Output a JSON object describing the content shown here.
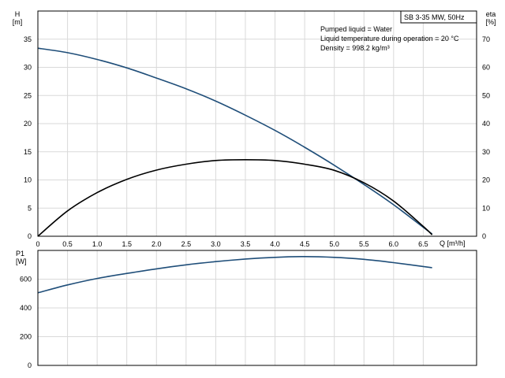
{
  "badge": "SB 3-35 MW, 50Hz",
  "info_lines": [
    "Pumped liquid = Water",
    "Liquid temperature during operation = 20 °C",
    "Density = 998.2 kg/m³"
  ],
  "chart_data": [
    {
      "type": "line",
      "panel": "top",
      "y_left_label": "H",
      "y_left_unit": "[m]",
      "y_right_label": "eta",
      "y_right_unit": "[%]",
      "x_label": "Q [m³/h]",
      "xlim": [
        0,
        7.4
      ],
      "ylim_left": [
        0,
        40
      ],
      "ylim_right": [
        0,
        80
      ],
      "x_ticks": [
        0,
        0.5,
        1.0,
        1.5,
        2.0,
        2.5,
        3.0,
        3.5,
        4.0,
        4.5,
        5.0,
        5.5,
        6.0,
        6.5
      ],
      "x_tick_labels": [
        "0",
        "0.5",
        "1.0",
        "1.5",
        "2.0",
        "2.5",
        "3.0",
        "3.5",
        "4.0",
        "4.5",
        "5.0",
        "5.5",
        "6.0",
        "6.5"
      ],
      "y_left_ticks": [
        0,
        5,
        10,
        15,
        20,
        25,
        30,
        35
      ],
      "y_right_ticks": [
        0,
        10,
        20,
        30,
        40,
        50,
        60,
        70
      ],
      "grid": true,
      "series": [
        {
          "axis": "left",
          "color": "#1f4e79",
          "x": [
            0,
            0.5,
            1.0,
            1.5,
            2.0,
            2.5,
            3.0,
            3.5,
            4.0,
            4.5,
            5.0,
            5.5,
            6.0,
            6.5,
            6.65
          ],
          "values": [
            33.4,
            32.6,
            31.4,
            29.9,
            28.1,
            26.2,
            24.0,
            21.5,
            18.8,
            15.8,
            12.6,
            9.2,
            5.6,
            1.6,
            0.4
          ]
        },
        {
          "axis": "right",
          "color": "#000000",
          "x": [
            0,
            0.5,
            1.0,
            1.5,
            2.0,
            2.5,
            3.0,
            3.5,
            4.0,
            4.5,
            5.0,
            5.5,
            6.0,
            6.5,
            6.65
          ],
          "values": [
            0,
            9.0,
            15.5,
            20.2,
            23.5,
            25.6,
            26.9,
            27.2,
            26.9,
            25.6,
            23.4,
            19.0,
            12.5,
            3.5,
            0.5
          ]
        }
      ]
    },
    {
      "type": "line",
      "panel": "bottom",
      "y_label": "P1",
      "y_unit": "[W]",
      "xlim": [
        0,
        7.4
      ],
      "ylim": [
        0,
        800
      ],
      "y_ticks": [
        0,
        200,
        400,
        600
      ],
      "grid": true,
      "series": [
        {
          "color": "#1f4e79",
          "x": [
            0,
            0.5,
            1.0,
            1.5,
            2.0,
            2.5,
            3.0,
            3.5,
            4.0,
            4.5,
            5.0,
            5.5,
            6.0,
            6.65
          ],
          "values": [
            505,
            560,
            605,
            640,
            672,
            700,
            722,
            740,
            752,
            757,
            752,
            738,
            715,
            680
          ]
        }
      ]
    }
  ]
}
